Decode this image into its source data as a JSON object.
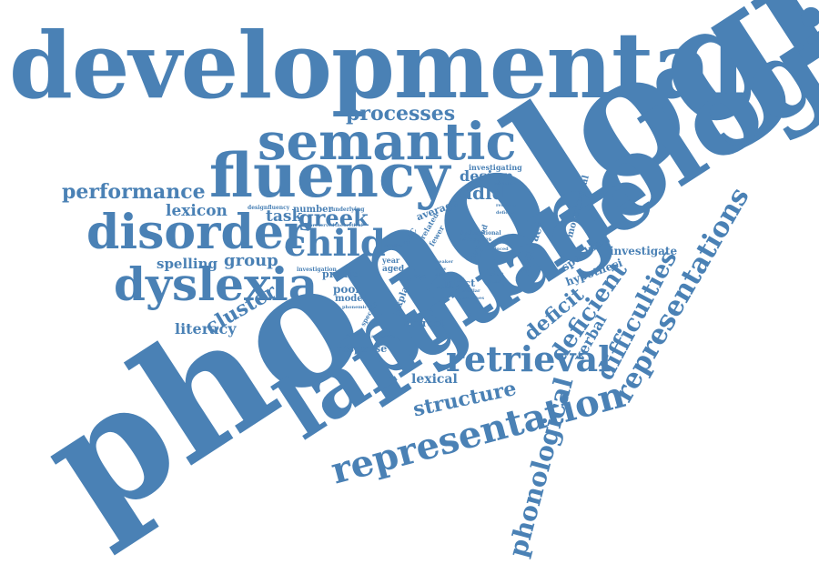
{
  "color": "#4a81b5",
  "words": [
    "developmental",
    "phonological",
    "phonological",
    "language",
    "semantic",
    "fluency",
    "disorder",
    "dyslexia",
    "child",
    "greek",
    "retrieval",
    "representation",
    "representations",
    "phonological",
    "processes",
    "performance",
    "lexicon",
    "task",
    "spelling",
    "group",
    "cluster",
    "literacy",
    "design",
    "ddld",
    "deficit",
    "deficient",
    "difficulties",
    "verbal",
    "structure",
    "lexical",
    "response",
    "correct",
    "poor",
    "model",
    "intact",
    "explain",
    "investigate",
    "hypothesi",
    "speaking",
    "accuracy",
    "monolingual",
    "investigating",
    "average",
    "acc",
    "number",
    "predict",
    "aged",
    "year",
    "age",
    "related",
    "fewer",
    "dysfunctional",
    "categories",
    "degraded",
    "designfluency",
    "investigation",
    "specific",
    "underlying",
    "preserved",
    "theoretical",
    "phonemic",
    "relative",
    "weaker",
    "slow",
    "study",
    "speed",
    "accessing",
    "similar",
    "reduced",
    "explicit",
    "extent",
    "factor",
    "switches",
    "evidence",
    "retrieve",
    "deficits"
  ]
}
